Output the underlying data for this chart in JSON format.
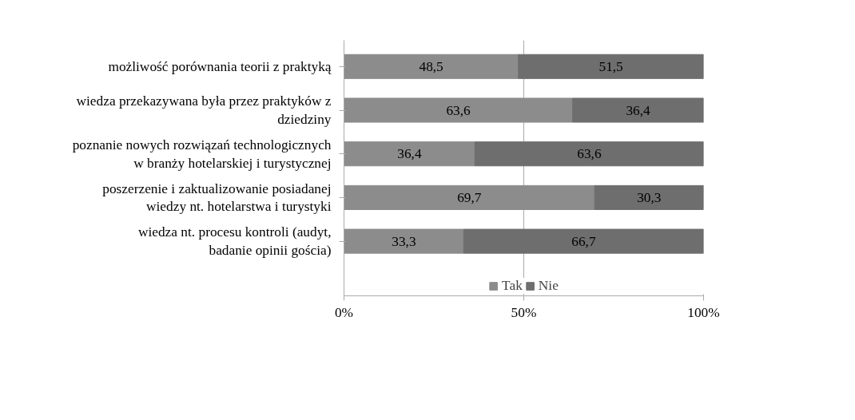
{
  "chart_data": {
    "type": "bar",
    "orientation": "horizontal",
    "stacked": true,
    "categories": [
      "możliwość porównania teorii z praktyką",
      "wiedza przekazywana była przez praktyków z dziedziny",
      "poznanie nowych rozwiązań technologicznych w branży hotelarskiej i turystycznej",
      "poszerzenie i zaktualizowanie posiadanej wiedzy nt. hotelarstwa i turystyki",
      "wiedza nt. procesu kontroli (audyt, badanie opinii gościa)"
    ],
    "series": [
      {
        "name": "Tak",
        "color": "#8c8c8c",
        "values": [
          48.5,
          63.6,
          36.4,
          69.7,
          33.3
        ],
        "value_labels": [
          "48,5",
          "63,6",
          "36,4",
          "69,7",
          "33,3"
        ]
      },
      {
        "name": "Nie",
        "color": "#6e6e6e",
        "values": [
          51.5,
          36.4,
          63.6,
          30.3,
          66.7
        ],
        "value_labels": [
          "51,5",
          "36,4",
          "63,6",
          "30,3",
          "66,7"
        ]
      }
    ],
    "xlim": [
      0,
      100
    ],
    "xticks": [
      {
        "value": 0,
        "label": "0%"
      },
      {
        "value": 50,
        "label": "50%"
      },
      {
        "value": 100,
        "label": "100%"
      }
    ],
    "grid": "x",
    "legend": "bottom"
  }
}
